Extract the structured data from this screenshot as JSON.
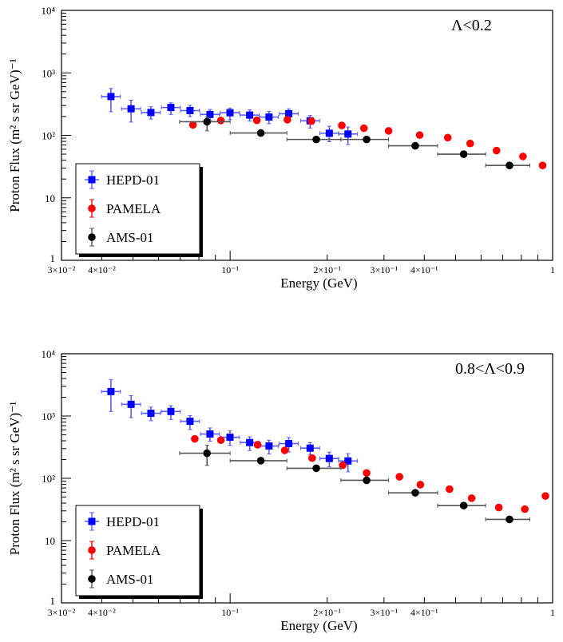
{
  "chart_data": [
    {
      "type": "scatter",
      "annotation": "Λ<0.2",
      "xlabel": "Energy (GeV)",
      "ylabel": "Proton Flux (m² s sr GeV)⁻¹",
      "x_scale": "log",
      "y_scale": "log",
      "xlim": [
        0.03,
        1
      ],
      "ylim": [
        1,
        10000
      ],
      "x_tick_labels": [
        {
          "v": 0.03,
          "t": "3×10⁻²"
        },
        {
          "v": 0.04,
          "t": "4×10⁻²"
        },
        {
          "v": 0.1,
          "t": "10⁻¹"
        },
        {
          "v": 0.2,
          "t": "2×10⁻¹"
        },
        {
          "v": 0.3,
          "t": "3×10⁻¹"
        },
        {
          "v": 0.4,
          "t": "4×10⁻¹"
        },
        {
          "v": 1,
          "t": "1"
        }
      ],
      "y_tick_labels": [
        {
          "v": 1,
          "t": "1"
        },
        {
          "v": 10,
          "t": "10"
        },
        {
          "v": 100,
          "t": "10²"
        },
        {
          "v": 1000,
          "t": "10³"
        },
        {
          "v": 10000,
          "t": "10⁴"
        }
      ],
      "grid": false,
      "legend": "bottom-left",
      "series": [
        {
          "name": "HEPD-01",
          "color": "#0000ff",
          "marker": "square",
          "x_err_factor": 1.07,
          "x": [
            0.0427,
            0.0493,
            0.0568,
            0.0655,
            0.0751,
            0.0866,
            0.0999,
            0.115,
            0.132,
            0.152,
            0.177,
            0.203,
            0.232
          ],
          "y": [
            418,
            266,
            232,
            279,
            249,
            216,
            230,
            211,
            196,
            222,
            171,
            108,
            105
          ],
          "y_low": [
            239,
            163,
            182,
            216,
            199,
            175,
            178,
            169,
            154,
            169,
            131,
            79,
            71
          ],
          "y_high": [
            562,
            365,
            287,
            331,
            302,
            260,
            273,
            255,
            242,
            265,
            208,
            140,
            136
          ]
        },
        {
          "name": "PAMELA",
          "color": "#ff0000",
          "marker": "circle",
          "x": [
            0.0767,
            0.0936,
            0.121,
            0.1505,
            0.1787,
            0.222,
            0.26,
            0.31,
            0.387,
            0.473,
            0.555,
            0.67,
            0.809,
            0.931
          ],
          "y": [
            147,
            173,
            174,
            178,
            169,
            144,
            130,
            118,
            101,
            92,
            74,
            57,
            46,
            33
          ]
        },
        {
          "name": "AMS-01",
          "color": "#000000",
          "marker": "circle",
          "x": [
            0.0848,
            0.1245,
            0.185,
            0.265,
            0.375,
            0.53,
            0.735
          ],
          "x_low": [
            0.0697,
            0.1,
            0.15,
            0.2205,
            0.31,
            0.44,
            0.62
          ],
          "x_high": [
            0.1,
            0.15,
            0.2205,
            0.31,
            0.44,
            0.62,
            0.85
          ],
          "y": [
            165,
            109,
            86,
            86,
            68,
            50,
            33
          ],
          "y_low": [
            118,
            null,
            null,
            null,
            null,
            null,
            null
          ],
          "y_high": [
            196,
            null,
            null,
            null,
            null,
            null,
            null
          ]
        }
      ]
    },
    {
      "type": "scatter",
      "annotation": "0.8<Λ<0.9",
      "xlabel": "Energy (GeV)",
      "ylabel": "Proton Flux (m² s sr GeV)⁻¹",
      "x_scale": "log",
      "y_scale": "log",
      "xlim": [
        0.03,
        1
      ],
      "ylim": [
        1,
        10000
      ],
      "x_tick_labels": [
        {
          "v": 0.03,
          "t": "3×10⁻²"
        },
        {
          "v": 0.04,
          "t": "4×10⁻²"
        },
        {
          "v": 0.1,
          "t": "10⁻¹"
        },
        {
          "v": 0.2,
          "t": "2×10⁻¹"
        },
        {
          "v": 0.3,
          "t": "3×10⁻¹"
        },
        {
          "v": 0.4,
          "t": "4×10⁻¹"
        },
        {
          "v": 1,
          "t": "1"
        }
      ],
      "y_tick_labels": [
        {
          "v": 1,
          "t": "1"
        },
        {
          "v": 10,
          "t": "10"
        },
        {
          "v": 100,
          "t": "10²"
        },
        {
          "v": 1000,
          "t": "10³"
        },
        {
          "v": 10000,
          "t": "10⁴"
        }
      ],
      "grid": false,
      "legend": "bottom-left",
      "series": [
        {
          "name": "HEPD-01",
          "color": "#0000ff",
          "marker": "square",
          "x_err_factor": 1.07,
          "x": [
            0.0427,
            0.0493,
            0.0568,
            0.0655,
            0.0751,
            0.0866,
            0.0999,
            0.115,
            0.132,
            0.152,
            0.177,
            0.203,
            0.232
          ],
          "y": [
            2472,
            1542,
            1106,
            1183,
            823,
            514,
            456,
            375,
            330,
            361,
            305,
            208,
            190
          ],
          "y_low": [
            1183,
            942,
            840,
            880,
            607,
            394,
            339,
            279,
            246,
            265,
            240,
            153,
            127
          ],
          "y_high": [
            3846,
            2127,
            1390,
            1465,
            1017,
            643,
            577,
            464,
            409,
            451,
            372,
            263,
            249
          ]
        },
        {
          "name": "PAMELA",
          "color": "#ff0000",
          "marker": "circle",
          "x": [
            0.0777,
            0.0936,
            0.1217,
            0.1477,
            0.1796,
            0.2234,
            0.265,
            0.335,
            0.389,
            0.479,
            0.561,
            0.681,
            0.82,
            0.95
          ],
          "y": [
            430,
            409,
            346,
            281,
            211,
            162,
            122,
            106,
            79,
            67,
            48,
            34,
            32,
            52
          ]
        },
        {
          "name": "AMS-01",
          "color": "#000000",
          "marker": "circle",
          "x": [
            0.0848,
            0.1245,
            0.185,
            0.265,
            0.375,
            0.53,
            0.735
          ],
          "x_low": [
            0.0697,
            0.1,
            0.15,
            0.2205,
            0.31,
            0.44,
            0.62
          ],
          "x_high": [
            0.1,
            0.15,
            0.2205,
            0.31,
            0.44,
            0.62,
            0.85
          ],
          "y": [
            253,
            192,
            145,
            93,
            58.5,
            36.5,
            21.9
          ],
          "y_low": [
            161,
            null,
            null,
            null,
            null,
            null,
            null
          ],
          "y_high": [
            340,
            null,
            null,
            null,
            null,
            null,
            null
          ]
        }
      ]
    }
  ]
}
